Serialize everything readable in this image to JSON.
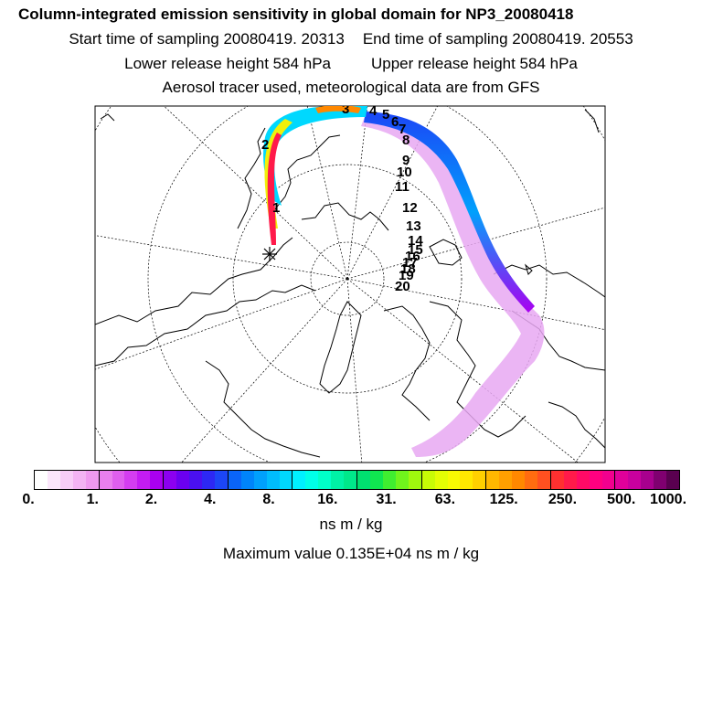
{
  "header": {
    "title": "Column-integrated emission sensitivity in global domain for NP3_20080418",
    "start_time": "Start time of sampling 20080419. 20313",
    "end_time": "End time of sampling 20080419. 20553",
    "lower_height": "Lower release height  584 hPa",
    "upper_height": "Upper release height  584 hPa",
    "tracer_note": "Aerosol tracer used, meteorological data are from GFS"
  },
  "colorbar": {
    "colors": [
      "#ffffff",
      "#fbe6fb",
      "#f7cdf7",
      "#f3b3f3",
      "#ef99ef",
      "#e97fee",
      "#df5fee",
      "#d43df0",
      "#c41cf2",
      "#aa00f0",
      "#8c00f0",
      "#6b00f0",
      "#4a10f0",
      "#2d28f4",
      "#1c46f6",
      "#0a64f8",
      "#0084fa",
      "#00a0fc",
      "#00bcfd",
      "#00d8fe",
      "#00f0ff",
      "#00ffe8",
      "#00ffc8",
      "#00f2a6",
      "#00e88a",
      "#00e070",
      "#10e650",
      "#40ee30",
      "#70f41c",
      "#a0f80e",
      "#c8fc06",
      "#e4fe04",
      "#f8fa02",
      "#ffe800",
      "#ffd000",
      "#ffb800",
      "#ffa000",
      "#ff8800",
      "#ff6c10",
      "#ff5020",
      "#ff3030",
      "#ff1a4a",
      "#ff0a66",
      "#ff0080",
      "#f2008e",
      "#e0009a",
      "#c8009e",
      "#a8008e",
      "#800070",
      "#5a0050"
    ],
    "tick_labels": [
      "0.",
      "1.",
      "2.",
      "4.",
      "8.",
      "16.",
      "31.",
      "63.",
      "125.",
      "250.",
      "500.",
      "1000."
    ],
    "units": "ns m / kg",
    "max_value": "Maximum value  0.135E+04 ns m / kg"
  },
  "map": {
    "projection": "polar-stereographic",
    "day_labels": [
      "1",
      "2",
      "3",
      "4",
      "5",
      "6",
      "7",
      "8",
      "9",
      "10",
      "11",
      "12",
      "13",
      "14",
      "15",
      "16",
      "17",
      "18",
      "19",
      "20"
    ],
    "release_marker": "release-location-cross"
  }
}
